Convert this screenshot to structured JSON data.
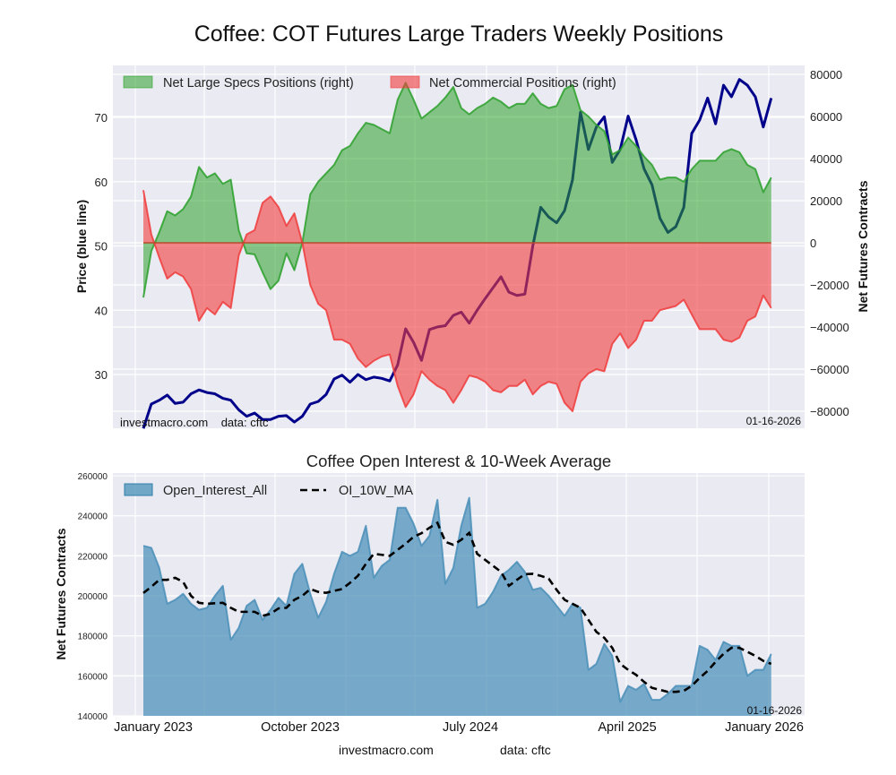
{
  "title": "Coffee: COT Futures Large Traders Weekly Positions",
  "footer": {
    "site": "investmacro.com",
    "source": "data: cftc"
  },
  "colors": {
    "specs": "#2ca02c",
    "commercials": "#f03c3c",
    "price": "#00008b",
    "open_interest": "#2e7fa8",
    "ma": "#000000",
    "plot_bg": "#eaeaf2"
  },
  "chart_data": [
    {
      "type": "area",
      "title": "Coffee: COT Futures Large Traders Weekly Positions",
      "ylabel_left": "Price (blue line)",
      "ylabel_right": "Net Futures Contracts",
      "left_ticks": [
        30,
        40,
        50,
        60,
        70
      ],
      "right_ticks": [
        80000,
        60000,
        40000,
        20000,
        0,
        -20000,
        -40000,
        -60000,
        -80000
      ],
      "right_tick_labels": [
        "80000",
        "60000",
        "40000",
        "20000",
        "0",
        "−20000",
        "−40000",
        "−60000",
        "−80000"
      ],
      "x_tick_labels": [
        "January 2023",
        "October 2023",
        "July 2024",
        "April 2025",
        "January 2026"
      ],
      "x_start": "2023-01-03",
      "x_step_weeks": 2,
      "date_stamp": "01-16-2026",
      "watermark": "investmacro.com    data: cftc",
      "grid": true,
      "legend_placement": "top",
      "legend": [
        "Net Large Specs Positions (right)",
        "Net Commercial Positions (right)"
      ],
      "series": [
        {
          "name": "Net Large Specs Positions (right)",
          "axis": "right",
          "unit": "thousand contracts",
          "values": [
            -26,
            -4,
            5,
            15,
            13,
            16,
            22,
            36,
            31,
            33,
            28,
            30,
            6,
            -5,
            -5.5,
            -14,
            -22,
            -18,
            -5,
            -13,
            0,
            23,
            29,
            33,
            37,
            44,
            46,
            52,
            57,
            56,
            54,
            52,
            68,
            76,
            68,
            59,
            62,
            65,
            69,
            74,
            64,
            61,
            64,
            66,
            69,
            67,
            64,
            66,
            66,
            71,
            66,
            64,
            65,
            73,
            75,
            63,
            60,
            56,
            53,
            42,
            44,
            50,
            46,
            41,
            37,
            30,
            31,
            31,
            29,
            35,
            39,
            39,
            39,
            43,
            44.5,
            43,
            37,
            35,
            24,
            31
          ]
        },
        {
          "name": "Net Commercial Positions (right)",
          "axis": "right",
          "unit": "thousand contracts",
          "values": [
            25,
            4,
            -7,
            -17,
            -14,
            -16,
            -22,
            -37,
            -31,
            -34,
            -28,
            -31,
            -6,
            4,
            6,
            19,
            22,
            17,
            8,
            14,
            0,
            -20,
            -29,
            -32,
            -46,
            -46,
            -48,
            -55,
            -59,
            -56,
            -54,
            -53,
            -68,
            -78,
            -72,
            -61,
            -65,
            -68,
            -70,
            -76,
            -70,
            -63,
            -64,
            -66,
            -70,
            -71,
            -68,
            -68,
            -65,
            -72,
            -68,
            -66,
            -67,
            -76,
            -80,
            -66,
            -62,
            -60,
            -61,
            -48,
            -43,
            -50,
            -46,
            -37,
            -37,
            -32,
            -31,
            -30,
            -27,
            -34,
            -41,
            -41,
            -41,
            -46,
            -47,
            -45,
            -37,
            -35,
            -25,
            -31
          ]
        },
        {
          "name": "Price (blue line)",
          "axis": "left",
          "values": [
            21.6,
            25.4,
            26,
            26.8,
            25.5,
            25.7,
            27,
            27.6,
            27.2,
            27,
            26.3,
            26,
            24.5,
            23.5,
            24,
            23,
            23,
            23.5,
            23.6,
            22.6,
            23.5,
            25.4,
            25.8,
            26.9,
            29.3,
            29.9,
            28.8,
            30,
            29.2,
            29.6,
            29.4,
            29,
            31.5,
            37.1,
            35,
            32.2,
            37,
            37.4,
            37.6,
            39.2,
            39.7,
            38,
            40,
            41.8,
            43.5,
            45.2,
            42.8,
            42.3,
            42.5,
            50,
            56,
            54.5,
            53.6,
            55.5,
            60.3,
            70.8,
            65,
            68.5,
            70.1,
            63,
            65,
            70.2,
            66.5,
            62,
            59.5,
            54.3,
            52.1,
            53,
            56,
            67.5,
            69.6,
            73,
            69,
            75,
            73.2,
            75.9,
            75,
            73.2,
            68.5,
            73
          ]
        }
      ]
    },
    {
      "type": "area",
      "title": "Coffee Open Interest & 10-Week Average",
      "ylabel": "Net Futures Contracts",
      "y_ticks": [
        260000,
        240000,
        220000,
        200000,
        180000,
        160000,
        140000
      ],
      "ylim": [
        140000,
        260000
      ],
      "x_tick_labels": [
        "January 2023",
        "October 2023",
        "July 2024",
        "April 2025",
        "January 2026"
      ],
      "x_start": "2023-01-03",
      "x_step_weeks": 2,
      "date_stamp": "01-16-2026",
      "grid": true,
      "legend_placement": "top-left",
      "legend": [
        "Open_Interest_All",
        "OI_10W_MA"
      ],
      "series": [
        {
          "name": "Open_Interest_All",
          "unit": "thousand contracts",
          "values": [
            225,
            224,
            214,
            196,
            198,
            201,
            196,
            193,
            194,
            200,
            205,
            178,
            184,
            195,
            198,
            188,
            193,
            199,
            195,
            211,
            216,
            201,
            189,
            197,
            211,
            222,
            220,
            222,
            235,
            209,
            215,
            218,
            244,
            244,
            236,
            225,
            230,
            248,
            206,
            214,
            235,
            249,
            194,
            196,
            202,
            210,
            213,
            217,
            212,
            203,
            204,
            200,
            195,
            190,
            196,
            194,
            163,
            166,
            176,
            170,
            147,
            155,
            153,
            156,
            148,
            148,
            151,
            155,
            155,
            155,
            175,
            173,
            168,
            177,
            175,
            175,
            160,
            163,
            163,
            171
          ]
        },
        {
          "name": "OI_10W_MA",
          "unit": "thousand contracts",
          "values": [
            201.4,
            204.5,
            208,
            208,
            209,
            207,
            200,
            196.5,
            196,
            196.3,
            196.5,
            194,
            192,
            192,
            192,
            190,
            191,
            193.7,
            194,
            198,
            200,
            203.4,
            202,
            201.5,
            202.5,
            203.4,
            206.5,
            210,
            216,
            221,
            220.5,
            220,
            223,
            226,
            229.5,
            231.3,
            234,
            236.5,
            227,
            225.5,
            228,
            231.5,
            221,
            218,
            215,
            212,
            205,
            208,
            210.8,
            211,
            210,
            208.6,
            203,
            198,
            196,
            194,
            188,
            182,
            179,
            174,
            166,
            163,
            160.5,
            157,
            154,
            153,
            152,
            152,
            152.5,
            155,
            159,
            162.5,
            167,
            171,
            174,
            174,
            172,
            170,
            167.5,
            166
          ]
        }
      ]
    }
  ]
}
